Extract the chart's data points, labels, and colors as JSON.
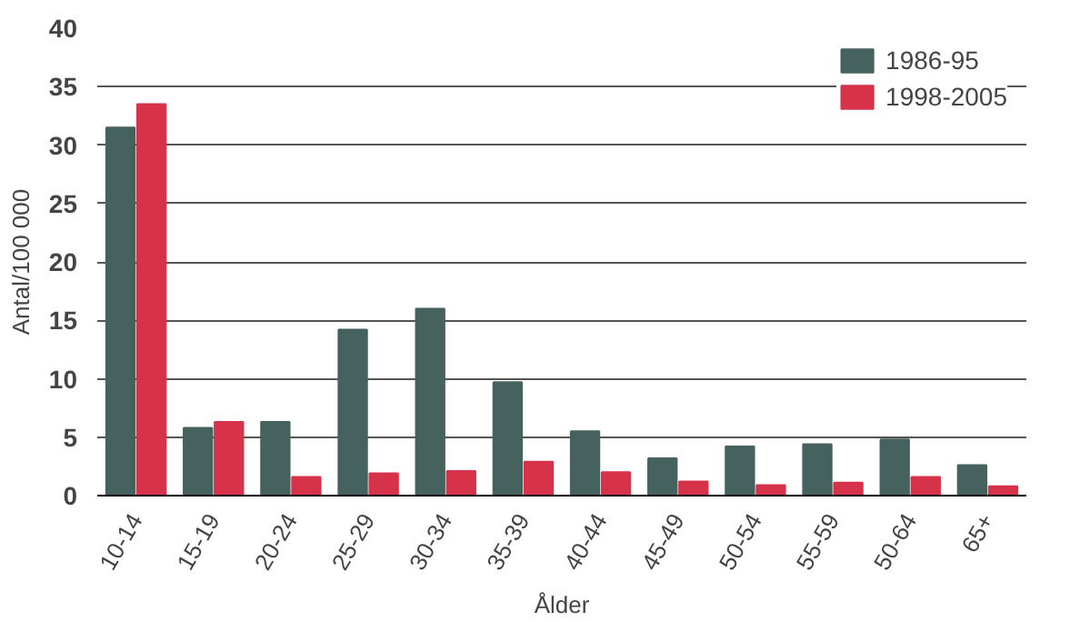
{
  "chart_data": {
    "type": "bar",
    "xlabel": "Ålder",
    "ylabel": "Antal/100 000",
    "categories": [
      "10-14",
      "15-19",
      "20-24",
      "25-29",
      "30-34",
      "35-39",
      "40-44",
      "45-49",
      "50-54",
      "55-59",
      "50-64",
      "65+"
    ],
    "series": [
      {
        "name": "1986-95",
        "color": "#46625f",
        "values": [
          31.5,
          5.8,
          6.3,
          14.2,
          16.0,
          9.7,
          5.5,
          3.2,
          4.2,
          4.4,
          4.8,
          2.6
        ]
      },
      {
        "name": "1998-2005",
        "color": "#d63249",
        "values": [
          33.5,
          6.3,
          1.6,
          1.9,
          2.1,
          2.9,
          2.0,
          1.2,
          0.9,
          1.1,
          1.6,
          0.8
        ]
      }
    ],
    "ylim": [
      0,
      40
    ],
    "yticks": [
      0,
      5,
      10,
      15,
      20,
      25,
      30,
      35,
      40
    ],
    "grid": "y",
    "legend": "top right"
  }
}
